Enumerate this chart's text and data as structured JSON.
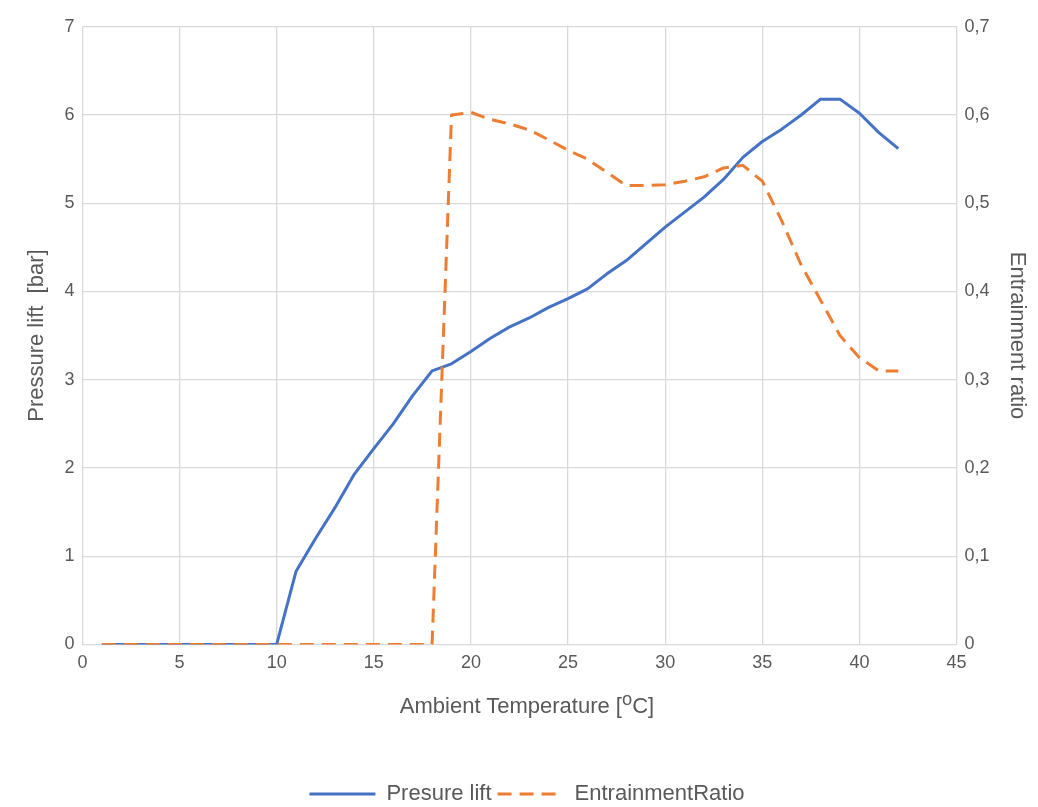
{
  "chart_data": {
    "type": "line",
    "xlabel": "Ambient Temperature [$^{o}$C]",
    "ylabel": "Pressure lift  [bar]",
    "y2label": "Entrainment ratio",
    "x": [
      1,
      2,
      3,
      4,
      5,
      6,
      7,
      8,
      9,
      10,
      11,
      12,
      13,
      14,
      15,
      16,
      17,
      18,
      19,
      20,
      21,
      22,
      23,
      24,
      25,
      26,
      27,
      28,
      29,
      30,
      31,
      32,
      33,
      34,
      35,
      36,
      37,
      38,
      39,
      40,
      41,
      42
    ],
    "series": [
      {
        "name": "Presure lift",
        "color": "#4472c4",
        "line_style": "solid",
        "values": [
          0,
          0,
          0,
          0,
          0,
          0,
          0,
          0,
          0,
          0,
          0.83,
          1.2,
          1.55,
          1.93,
          2.22,
          2.5,
          2.82,
          3.1,
          3.18,
          3.32,
          3.47,
          3.6,
          3.7,
          3.82,
          3.92,
          4.03,
          4.2,
          4.35,
          4.54,
          4.73,
          4.9,
          5.07,
          5.27,
          5.52,
          5.7,
          5.84,
          6.0,
          6.18,
          6.18,
          6.02,
          5.8,
          5.62
        ]
      },
      {
        "name": "EntrainmentRatio",
        "color": "#ed7d31",
        "line_style": "dashed",
        "axis": "y2",
        "values": [
          0,
          0,
          0,
          0,
          0,
          0,
          0,
          0,
          0,
          0,
          0,
          0,
          0,
          0,
          0,
          0,
          0,
          0,
          0.6,
          0.603,
          0.595,
          0.59,
          0.583,
          0.572,
          0.56,
          0.55,
          0.535,
          0.52,
          0.52,
          0.521,
          0.525,
          0.53,
          0.54,
          0.543,
          0.525,
          0.48,
          0.43,
          0.39,
          0.35,
          0.325,
          0.31,
          0.31
        ]
      }
    ],
    "xlim": [
      0,
      45
    ],
    "xticks": [
      0,
      5,
      10,
      15,
      20,
      25,
      30,
      35,
      40,
      45
    ],
    "ylim": [
      0,
      7
    ],
    "yticks": [
      0,
      1,
      2,
      3,
      4,
      5,
      6,
      7
    ],
    "y2lim": [
      0,
      0.7
    ],
    "y2ticks": [
      0,
      {
        "value": 0.1,
        "label": "0,1"
      },
      {
        "value": 0.2,
        "label": "0,2"
      },
      {
        "value": 0.3,
        "label": "0,3"
      },
      {
        "value": 0.4,
        "label": "0,4"
      },
      {
        "value": 0.5,
        "label": "0,5"
      },
      {
        "value": 0.6,
        "label": "0,6"
      },
      {
        "value": 0.7,
        "label": "0,7"
      }
    ],
    "grid": true,
    "legend": "bottom",
    "marker": "none"
  }
}
